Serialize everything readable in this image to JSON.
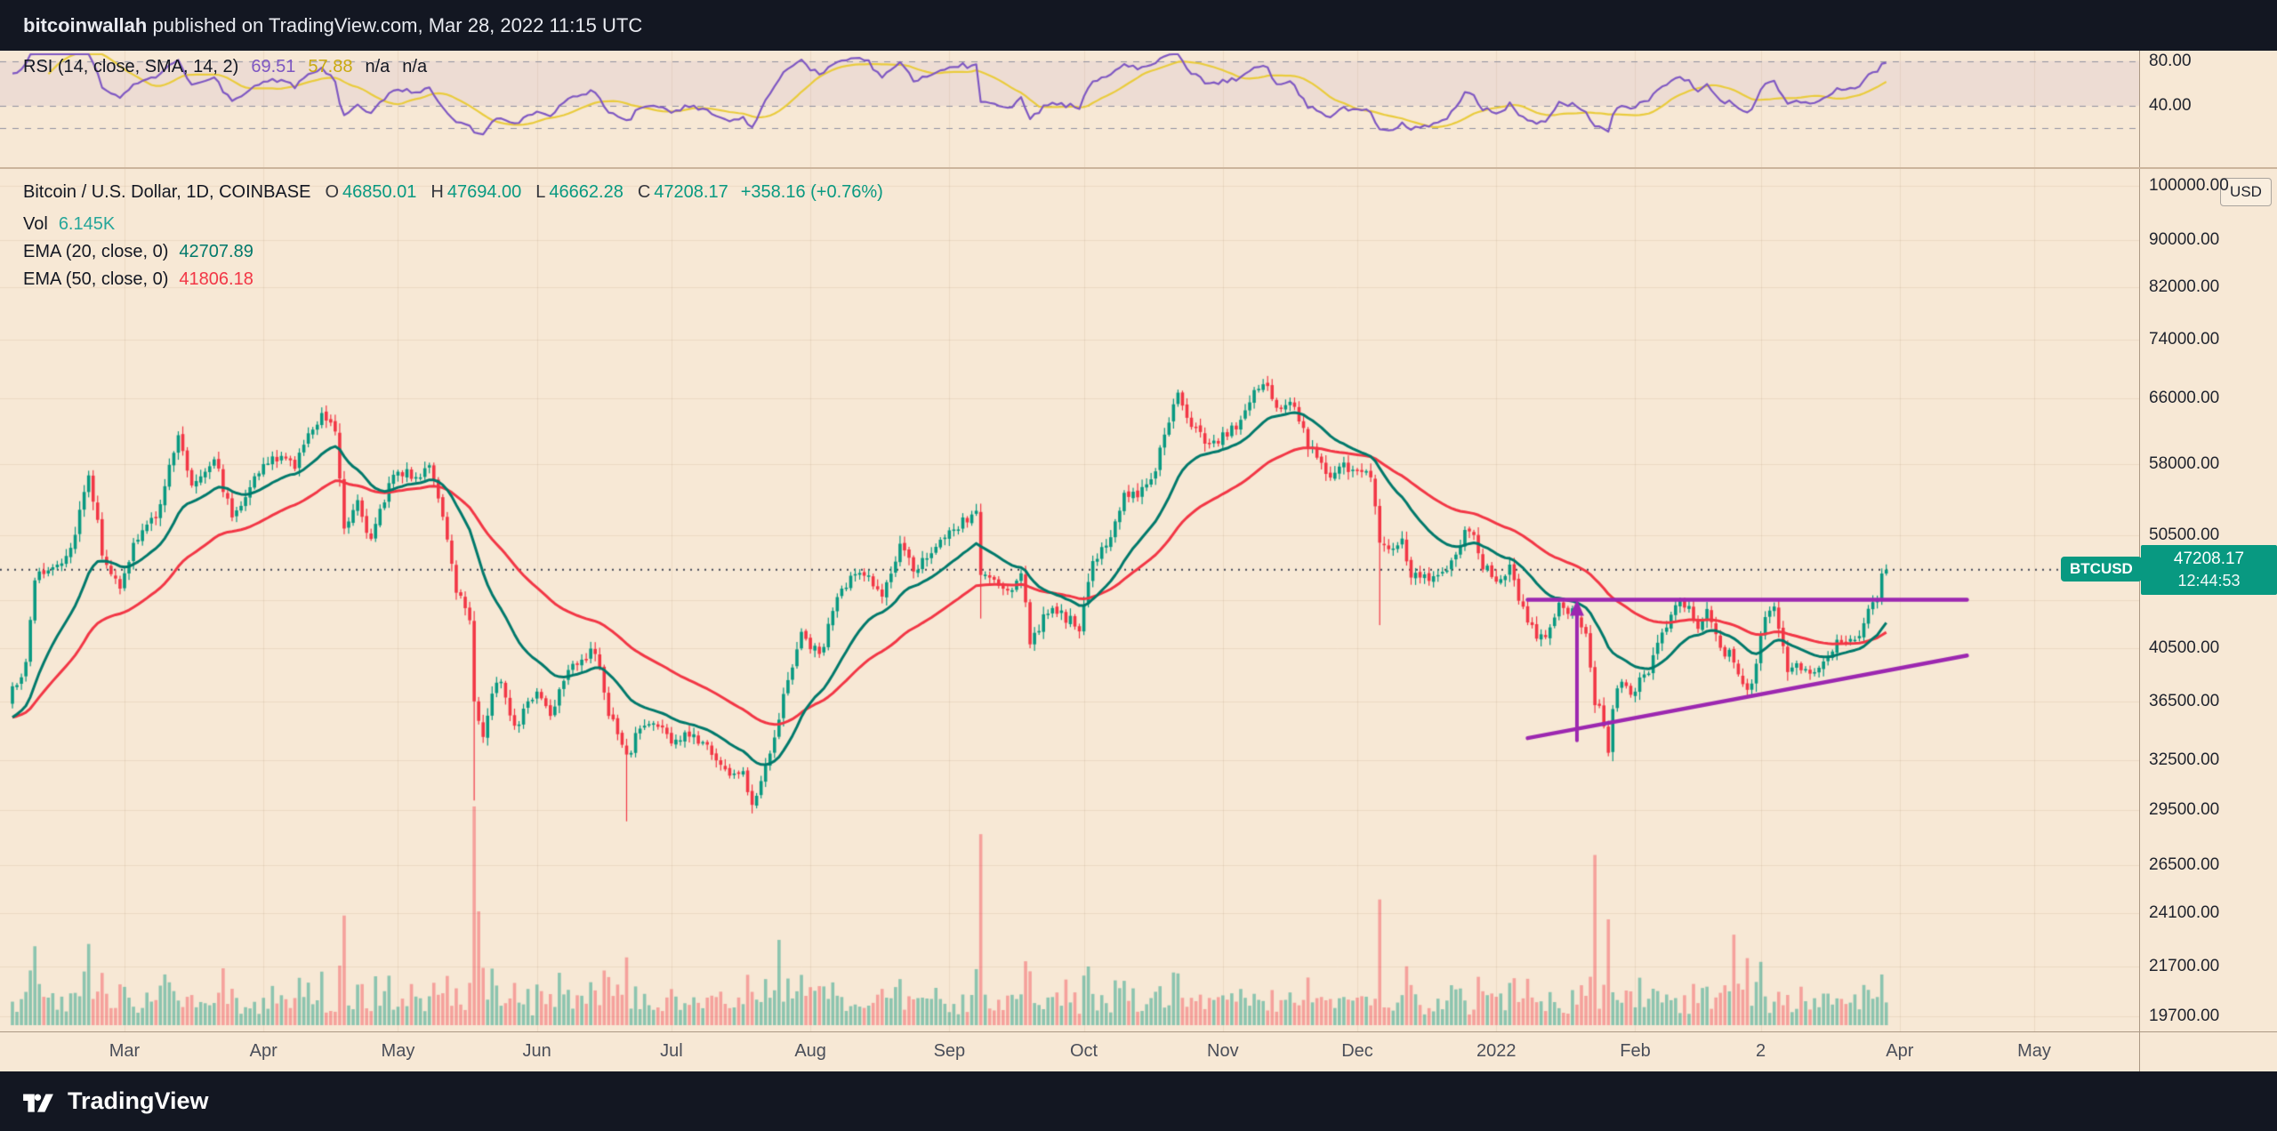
{
  "topbar": {
    "user": "bitcoinwallah",
    "text": " published on TradingView.com, Mar 28, 2022 11:15 UTC"
  },
  "rsi": {
    "title": "RSI (14, close, SMA, 14, 2)",
    "value": "69.51",
    "ma": "57.88",
    "na1": "n/a",
    "na2": "n/a"
  },
  "legend": {
    "title": "Bitcoin / U.S. Dollar, 1D, COINBASE",
    "ohlc": [
      {
        "k": "O",
        "v": "46850.01"
      },
      {
        "k": "H",
        "v": "47694.00"
      },
      {
        "k": "L",
        "v": "46662.28"
      },
      {
        "k": "C",
        "v": "47208.17"
      }
    ],
    "change": "+358.16 (+0.76%)",
    "vol_label": "Vol",
    "vol": "6.145K",
    "ema20_label": "EMA (20, close, 0)",
    "ema20": "42707.89",
    "ema50_label": "EMA (50, close, 0)",
    "ema50": "41806.18"
  },
  "price_axis": {
    "currency": "USD",
    "last": "47208.17",
    "countdown": "12:44:53",
    "symbol": "BTCUSD",
    "labels": [
      {
        "text": "100000.00",
        "value": 100000
      },
      {
        "text": "90000.00",
        "value": 90000
      },
      {
        "text": "82000.00",
        "value": 82000
      },
      {
        "text": "74000.00",
        "value": 74000
      },
      {
        "text": "66000.00",
        "value": 66000
      },
      {
        "text": "58000.00",
        "value": 58000
      },
      {
        "text": "50500.00",
        "value": 50500
      },
      {
        "text": "40500.00",
        "value": 40500
      },
      {
        "text": "36500.00",
        "value": 36500
      },
      {
        "text": "32500.00",
        "value": 32500
      },
      {
        "text": "29500.00",
        "value": 29500
      },
      {
        "text": "26500.00",
        "value": 26500
      },
      {
        "text": "24100.00",
        "value": 24100
      },
      {
        "text": "21700.00",
        "value": 21700
      },
      {
        "text": "19700.00",
        "value": 19700
      }
    ]
  },
  "rsi_axis": {
    "labels": [
      {
        "text": "80.00",
        "value": 80
      },
      {
        "text": "40.00",
        "value": 40
      }
    ]
  },
  "time_axis": [
    {
      "text": "Mar",
      "day": 28
    },
    {
      "text": "Apr",
      "day": 59
    },
    {
      "text": "May",
      "day": 89
    },
    {
      "text": "Jun",
      "day": 120
    },
    {
      "text": "Jul",
      "day": 150
    },
    {
      "text": "Aug",
      "day": 181
    },
    {
      "text": "Sep",
      "day": 212
    },
    {
      "text": "Oct",
      "day": 242
    },
    {
      "text": "Nov",
      "day": 273
    },
    {
      "text": "Dec",
      "day": 303
    },
    {
      "text": "2022",
      "day": 334
    },
    {
      "text": "Feb",
      "day": 365
    },
    {
      "text": "2",
      "day": 393
    },
    {
      "text": "Apr",
      "day": 424
    },
    {
      "text": "May",
      "day": 454
    }
  ],
  "footer": {
    "brand": "TradingView"
  },
  "chart_data": {
    "type": "candlestick",
    "symbol": "BTCUSD",
    "exchange": "COINBASE",
    "interval": "1D",
    "scale": "log",
    "title": "Bitcoin / U.S. Dollar, 1D, COINBASE",
    "day0_date": "2021-02-01",
    "x_unit": "days since 2021-02-01",
    "visible_candle_days": [
      3,
      421
    ],
    "current_price": 47208.17,
    "last_candle": {
      "open": 46850.01,
      "high": 47694.0,
      "low": 46662.28,
      "close": 47208.17,
      "change": 358.16,
      "change_pct": 0.76
    },
    "indicators": {
      "ema20": 42707.89,
      "ema50": 41806.18,
      "rsi14": 69.51,
      "rsi_ma": 57.88,
      "volume": "6.145K"
    },
    "y_axis": {
      "unit": "USD",
      "gridline_values": [
        19700,
        21700,
        24100,
        26500,
        29500,
        32500,
        36500,
        40500,
        44500,
        50500,
        58000,
        66000,
        74000,
        82000,
        90000,
        100000
      ]
    },
    "rsi_hlines": [
      80,
      40,
      20
    ],
    "price_keypoints": [
      [
        -16,
        35200
      ],
      [
        0,
        34500
      ],
      [
        3,
        37600
      ],
      [
        6,
        39000
      ],
      [
        8,
        46400
      ],
      [
        13,
        47800
      ],
      [
        16,
        49200
      ],
      [
        20,
        57200
      ],
      [
        23,
        49000
      ],
      [
        27,
        45200
      ],
      [
        30,
        49600
      ],
      [
        35,
        52500
      ],
      [
        40,
        61200
      ],
      [
        43,
        55800
      ],
      [
        48,
        58900
      ],
      [
        52,
        52300
      ],
      [
        56,
        55800
      ],
      [
        61,
        58800
      ],
      [
        66,
        58100
      ],
      [
        72,
        64400
      ],
      [
        75,
        62200
      ],
      [
        77,
        51500
      ],
      [
        80,
        54200
      ],
      [
        83,
        49800
      ],
      [
        88,
        57400
      ],
      [
        93,
        56500
      ],
      [
        96,
        58300
      ],
      [
        100,
        49800
      ],
      [
        102,
        45600
      ],
      [
        105,
        42900
      ],
      [
        106,
        36800
      ],
      [
        108,
        33900
      ],
      [
        110,
        37200
      ],
      [
        112,
        38100
      ],
      [
        115,
        34800
      ],
      [
        117,
        35700
      ],
      [
        120,
        37300
      ],
      [
        123,
        35600
      ],
      [
        127,
        39200
      ],
      [
        133,
        40200
      ],
      [
        136,
        35800
      ],
      [
        140,
        32600
      ],
      [
        143,
        34700
      ],
      [
        147,
        35000
      ],
      [
        150,
        33600
      ],
      [
        154,
        34200
      ],
      [
        158,
        33500
      ],
      [
        162,
        31800
      ],
      [
        166,
        31600
      ],
      [
        168,
        29900
      ],
      [
        171,
        32200
      ],
      [
        174,
        35400
      ],
      [
        176,
        38200
      ],
      [
        179,
        41600
      ],
      [
        183,
        39900
      ],
      [
        187,
        44600
      ],
      [
        190,
        46300
      ],
      [
        193,
        47100
      ],
      [
        197,
        44700
      ],
      [
        201,
        49300
      ],
      [
        204,
        47100
      ],
      [
        207,
        48800
      ],
      [
        211,
        50000
      ],
      [
        215,
        51800
      ],
      [
        218,
        52700
      ],
      [
        219,
        46900
      ],
      [
        222,
        46100
      ],
      [
        225,
        44900
      ],
      [
        228,
        47200
      ],
      [
        230,
        41100
      ],
      [
        233,
        42800
      ],
      [
        236,
        43600
      ],
      [
        239,
        42700
      ],
      [
        241,
        41600
      ],
      [
        244,
        48200
      ],
      [
        247,
        49200
      ],
      [
        251,
        54900
      ],
      [
        254,
        54700
      ],
      [
        258,
        57500
      ],
      [
        260,
        61600
      ],
      [
        263,
        66100
      ],
      [
        266,
        62300
      ],
      [
        270,
        60600
      ],
      [
        273,
        61300
      ],
      [
        277,
        63200
      ],
      [
        280,
        66900
      ],
      [
        283,
        67600
      ],
      [
        285,
        64800
      ],
      [
        288,
        65500
      ],
      [
        290,
        63600
      ],
      [
        292,
        60100
      ],
      [
        295,
        58700
      ],
      [
        297,
        56300
      ],
      [
        300,
        57800
      ],
      [
        302,
        57300
      ],
      [
        306,
        56900
      ],
      [
        308,
        49300
      ],
      [
        311,
        49400
      ],
      [
        313,
        50100
      ],
      [
        315,
        46900
      ],
      [
        317,
        46700
      ],
      [
        320,
        46200
      ],
      [
        323,
        46900
      ],
      [
        327,
        50800
      ],
      [
        329,
        50700
      ],
      [
        331,
        47600
      ],
      [
        334,
        46300
      ],
      [
        337,
        47300
      ],
      [
        340,
        43500
      ],
      [
        343,
        41600
      ],
      [
        346,
        41900
      ],
      [
        348,
        43900
      ],
      [
        352,
        43100
      ],
      [
        354,
        41700
      ],
      [
        356,
        36500
      ],
      [
        358,
        35100
      ],
      [
        359,
        33100
      ],
      [
        360,
        36300
      ],
      [
        362,
        37800
      ],
      [
        364,
        37200
      ],
      [
        368,
        38600
      ],
      [
        371,
        41600
      ],
      [
        374,
        43900
      ],
      [
        376,
        44100
      ],
      [
        379,
        42400
      ],
      [
        381,
        44000
      ],
      [
        384,
        40100
      ],
      [
        386,
        40000
      ],
      [
        388,
        38500
      ],
      [
        390,
        37100
      ],
      [
        392,
        39200
      ],
      [
        394,
        43200
      ],
      [
        396,
        44400
      ],
      [
        397,
        42500
      ],
      [
        399,
        39000
      ],
      [
        401,
        39400
      ],
      [
        404,
        38800
      ],
      [
        406,
        38900
      ],
      [
        408,
        39300
      ],
      [
        410,
        41100
      ],
      [
        412,
        40600
      ],
      [
        414,
        41300
      ],
      [
        416,
        42400
      ],
      [
        418,
        44300
      ],
      [
        419,
        44500
      ],
      [
        420,
        46850
      ],
      [
        421,
        47208
      ]
    ],
    "wick_overrides": {
      "lows": {
        "106": 30050,
        "140": 28850,
        "168": 29300,
        "219": 42900,
        "308": 42350,
        "359": 32950
      },
      "highs": {
        "72": 64850,
        "218": 52950,
        "263": 66950,
        "283": 68950
      }
    },
    "volume_spikes": {
      "8": 1.9,
      "20": 1.8,
      "72": 1.5,
      "77": 1.7,
      "106": 5.2,
      "107": 2.6,
      "108": 2.1,
      "140": 1.7,
      "174": 1.8,
      "179": 1.6,
      "218": 1.6,
      "219": 2.0,
      "230": 1.5,
      "263": 1.4,
      "308": 2.2,
      "340": 1.5,
      "356": 2.2,
      "359": 2.0,
      "387": 2.2,
      "390": 1.8,
      "394": 1.6
    },
    "trendlines": [
      {
        "type": "horizontal",
        "price": 44500,
        "day_start": 341,
        "day_end": 439
      },
      {
        "type": "ascending",
        "from": [
          341,
          33950
        ],
        "to": [
          439,
          39900
        ]
      },
      {
        "type": "vertical-arrow",
        "day": 352,
        "price_from": 33800,
        "price_to": 44500
      }
    ],
    "style": {
      "bg": "#f7e8d5",
      "grid": "rgba(96,56,8,0.08)",
      "up": "#089981",
      "down": "#f23645",
      "vol_up": "rgba(8,153,129,0.45)",
      "vol_down": "rgba(242,54,69,0.4)",
      "ema20": "#00796b",
      "ema50": "#f23645",
      "rsi_line": "#7e57c2",
      "rsi_ma": "#e9cb3c",
      "rsi_ma_text": "#c9a90f",
      "rsi_band": "rgba(126,87,194,0.08)",
      "rsi_dash": "#8f91a0",
      "trend": "#9c27b0",
      "price_line": "#3f4454",
      "vol_text": "#26a69a",
      "bar_bg": "#131722"
    }
  }
}
